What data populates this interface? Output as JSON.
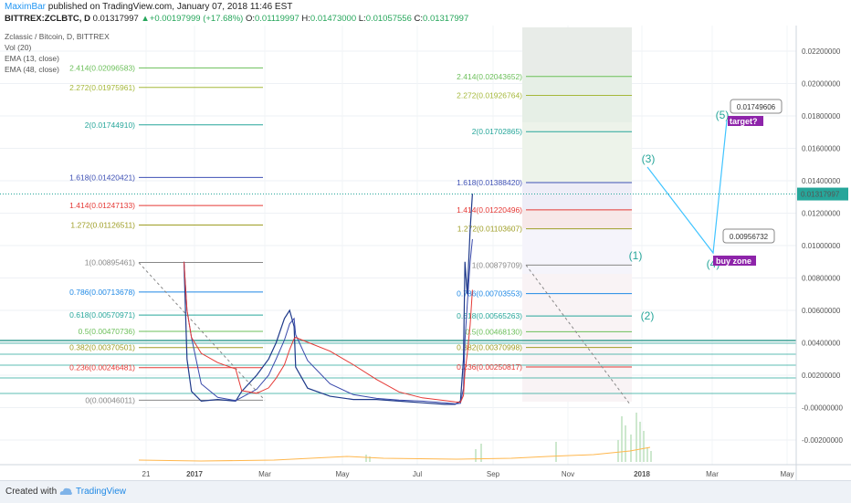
{
  "header": {
    "author": "MaximBar",
    "published": "published on TradingView.com, January 07, 2018 11:46 EST",
    "symbol": "BITTREX:ZCLBTC, D",
    "price": "0.01317997",
    "arrow": "▲",
    "change": "+0.00197999 (+17.68%)",
    "open_label": "O:",
    "open": "0.01119997",
    "high_label": "H:",
    "high": "0.01473000",
    "low_label": "L:",
    "low": "0.01057556",
    "close_label": "C:",
    "close": "0.01317997"
  },
  "legend": {
    "title": "Zclassic / Bitcoin, D, BITTREX",
    "vol": "Vol (20)",
    "ema13": "EMA (13, close)",
    "ema48": "EMA (48, close)"
  },
  "footer": {
    "created": "Created with",
    "brand": "TradingView"
  },
  "colors": {
    "price_line": "#1f3a8a",
    "ema13": "#3949ab",
    "ema48": "#e53935",
    "teal": "#26a69a",
    "projection": "#40c4ff",
    "purple_badge": "#8e24aa"
  },
  "chart_data": {
    "type": "line",
    "title": "Zclassic / Bitcoin, D, BITTREX",
    "xlabel": "",
    "ylabel": "",
    "x_ticks": [
      "21",
      "2017",
      "Mar",
      "May",
      "Jul",
      "Sep",
      "Nov",
      "2018",
      "Mar",
      "May"
    ],
    "y_ticks": [
      "0.02200000",
      "0.02000000",
      "0.01800000",
      "0.01600000",
      "0.01400000",
      "0.01200000",
      "0.01000000",
      "0.00800000",
      "0.00600000",
      "0.00400000",
      "0.00200000",
      "-0.00000000",
      "-0.00200000"
    ],
    "ylim": [
      -0.0033,
      0.0232
    ],
    "current_price_label": "0.01317997",
    "series": [
      {
        "name": "price",
        "x": [
          "2016-12-18",
          "2016-12-22",
          "2016-12-28",
          "2017-01-10",
          "2017-02-01",
          "2017-02-25",
          "2017-03-05",
          "2017-03-25",
          "2017-04-10",
          "2017-04-20",
          "2017-05-01",
          "2017-05-08",
          "2017-05-14",
          "2017-05-16",
          "2017-06-01",
          "2017-07-01",
          "2017-08-01",
          "2017-09-01",
          "2017-10-01",
          "2017-11-01",
          "2017-12-01",
          "2017-12-15",
          "2017-12-22",
          "2017-12-26",
          "2017-12-28",
          "2017-12-31",
          "2018-01-04",
          "2018-01-07"
        ],
        "values": [
          0.009,
          0.003,
          0.001,
          0.0004,
          0.0005,
          0.0004,
          0.001,
          0.002,
          0.003,
          0.004,
          0.0055,
          0.006,
          0.005,
          0.0025,
          0.0012,
          0.0007,
          0.0005,
          0.0005,
          0.0004,
          0.0003,
          0.0002,
          0.0002,
          0.0004,
          0.003,
          0.009,
          0.007,
          0.011,
          0.0132
        ]
      }
    ],
    "fib_left": [
      {
        "level": "2.414",
        "value": "0.02096583",
        "color": "#6bbf59"
      },
      {
        "level": "2.272",
        "value": "0.01975961",
        "color": "#a5b83a"
      },
      {
        "level": "2",
        "value": "0.01744910",
        "color": "#26a69a"
      },
      {
        "level": "1.618",
        "value": "0.01420421",
        "color": "#3f51b5"
      },
      {
        "level": "1.414",
        "value": "0.01247133",
        "color": "#e53935"
      },
      {
        "level": "1.272",
        "value": "0.01126511",
        "color": "#9e9d24"
      },
      {
        "level": "1",
        "value": "0.00895461",
        "color": "#888888"
      },
      {
        "level": "0.786",
        "value": "0.00713678",
        "color": "#1e88e5"
      },
      {
        "level": "0.618",
        "value": "0.00570971",
        "color": "#26a69a"
      },
      {
        "level": "0.5",
        "value": "0.00470736",
        "color": "#6bbf59"
      },
      {
        "level": "0.382",
        "value": "0.00370501",
        "color": "#9e9d24"
      },
      {
        "level": "0.236",
        "value": "0.00246481",
        "color": "#e53935"
      },
      {
        "level": "0",
        "value": "0.00046011",
        "color": "#888888"
      }
    ],
    "fib_right": [
      {
        "level": "2.414",
        "value": "0.02043652",
        "color": "#6bbf59"
      },
      {
        "level": "2.272",
        "value": "0.01926764",
        "color": "#a5b83a"
      },
      {
        "level": "2",
        "value": "0.01702865",
        "color": "#26a69a"
      },
      {
        "level": "1.618",
        "value": "0.01388420",
        "color": "#3f51b5"
      },
      {
        "level": "1.414",
        "value": "0.01220496",
        "color": "#e53935"
      },
      {
        "level": "1.272",
        "value": "0.01103607",
        "color": "#9e9d24"
      },
      {
        "level": "1",
        "value": "0.00879709",
        "color": "#888888"
      },
      {
        "level": "0.786",
        "value": "0.00703553",
        "color": "#1e88e5"
      },
      {
        "level": "0.618",
        "value": "0.00565263",
        "color": "#26a69a"
      },
      {
        "level": "0.5",
        "value": "0.00468130",
        "color": "#6bbf59"
      },
      {
        "level": "0.382",
        "value": "0.00370998",
        "color": "#9e9d24"
      },
      {
        "level": "0.236",
        "value": "0.00250817",
        "color": "#e53935"
      }
    ],
    "wave_labels": [
      "(1)",
      "(2)",
      "(3)",
      "(4)",
      "(5)"
    ],
    "annotations": [
      {
        "text": "0.01749606"
      },
      {
        "text": "target?"
      },
      {
        "text": "0.00956732"
      },
      {
        "text": "buy zone"
      }
    ]
  }
}
